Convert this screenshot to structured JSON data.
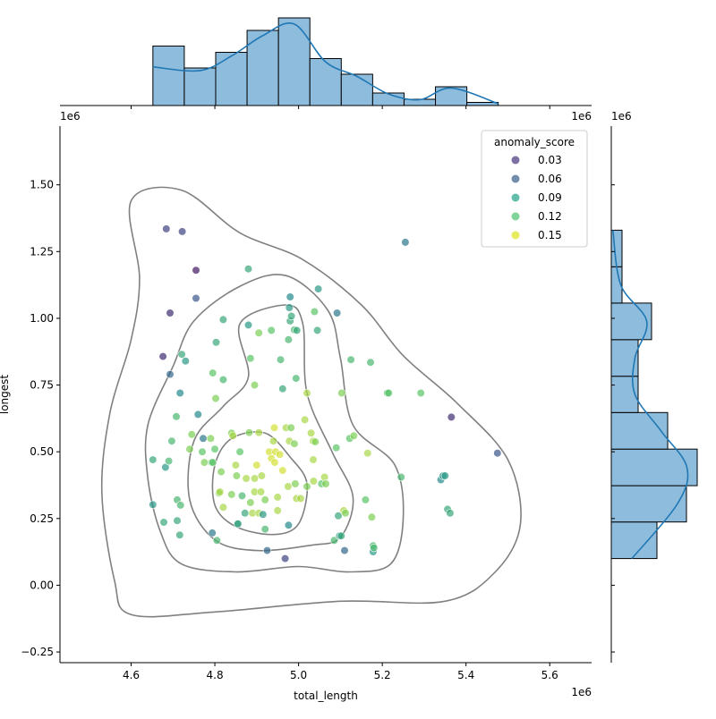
{
  "chart_data": {
    "type": "scatter",
    "xlabel": "total_length",
    "ylabel": "longest",
    "x_offset_label": "1e6",
    "y_offset_label": "1e6",
    "top_marginal_offset_label_left": "1e6",
    "top_marginal_offset_label_right": "1e6",
    "right_marginal_offset_label": "1e6",
    "xlim": [
      4.43,
      5.7
    ],
    "ylim": [
      -0.29,
      1.72
    ],
    "x_ticks": [
      4.6,
      4.8,
      5.0,
      5.2,
      5.4,
      5.6
    ],
    "x_tick_labels": [
      "4.6",
      "4.8",
      "5.0",
      "5.2",
      "5.4",
      "5.6"
    ],
    "y_ticks": [
      -0.25,
      0.0,
      0.25,
      0.5,
      0.75,
      1.0,
      1.25,
      1.5
    ],
    "y_tick_labels": [
      "−0.25",
      "0.00",
      "0.25",
      "0.50",
      "0.75",
      "1.00",
      "1.25",
      "1.50"
    ],
    "grid": false,
    "legend": {
      "title": "anomaly_score",
      "placement": "top-right",
      "entries": [
        {
          "label": "0.03",
          "color": "#46337e"
        },
        {
          "label": "0.06",
          "color": "#365c8d"
        },
        {
          "label": "0.09",
          "color": "#1fa187"
        },
        {
          "label": "0.12",
          "color": "#4ac16d"
        },
        {
          "label": "0.15",
          "color": "#dde318"
        }
      ]
    },
    "colors": {
      "histogram_fill": "#8ebcdc",
      "kde_line": "#1f77b4",
      "contour": "#808080",
      "axis": "#000000"
    },
    "colormap_stops": [
      "#440154",
      "#3b528b",
      "#21918c",
      "#5ec962",
      "#fde725"
    ],
    "score_range": [
      0.02,
      0.17
    ],
    "points": [
      [
        4.684,
        1.335,
        0.05
      ],
      [
        4.722,
        1.325,
        0.05
      ],
      [
        4.755,
        1.18,
        0.03
      ],
      [
        4.693,
        1.02,
        0.04
      ],
      [
        4.755,
        1.075,
        0.06
      ],
      [
        4.676,
        0.857,
        0.04
      ],
      [
        4.693,
        0.79,
        0.07
      ],
      [
        4.717,
        0.72,
        0.09
      ],
      [
        4.76,
        0.64,
        0.09
      ],
      [
        4.772,
        0.55,
        0.08
      ],
      [
        5.475,
        0.495,
        0.06
      ],
      [
        5.365,
        0.63,
        0.04
      ],
      [
        5.255,
        1.285,
        0.08
      ],
      [
        4.968,
        0.1,
        0.05
      ],
      [
        4.925,
        0.13,
        0.07
      ],
      [
        5.11,
        0.13,
        0.07
      ],
      [
        5.178,
        0.125,
        0.1
      ],
      [
        4.976,
        0.225,
        0.09
      ],
      [
        4.855,
        0.23,
        0.09
      ],
      [
        4.794,
        0.196,
        0.08
      ],
      [
        4.678,
        0.236,
        0.11
      ],
      [
        4.652,
        0.302,
        0.1
      ],
      [
        4.652,
        0.47,
        0.11
      ],
      [
        4.682,
        0.442,
        0.1
      ],
      [
        4.69,
        0.465,
        0.12
      ],
      [
        4.697,
        0.54,
        0.12
      ],
      [
        4.708,
        0.632,
        0.12
      ],
      [
        4.721,
        0.865,
        0.11
      ],
      [
        4.73,
        0.84,
        0.1
      ],
      [
        4.88,
        1.185,
        0.11
      ],
      [
        4.82,
        0.995,
        0.11
      ],
      [
        4.88,
        0.975,
        0.1
      ],
      [
        4.803,
        0.91,
        0.11
      ],
      [
        4.82,
        0.77,
        0.12
      ],
      [
        4.795,
        0.795,
        0.13
      ],
      [
        4.802,
        0.7,
        0.14
      ],
      [
        4.885,
        0.85,
        0.13
      ],
      [
        4.895,
        0.75,
        0.14
      ],
      [
        4.905,
        0.945,
        0.14
      ],
      [
        4.935,
        0.955,
        0.13
      ],
      [
        4.957,
        0.845,
        0.12
      ],
      [
        4.962,
        0.736,
        0.11
      ],
      [
        4.976,
        0.92,
        0.12
      ],
      [
        4.98,
        0.99,
        0.11
      ],
      [
        4.978,
        1.04,
        0.1
      ],
      [
        4.98,
        1.08,
        0.09
      ],
      [
        4.983,
        1.008,
        0.11
      ],
      [
        4.99,
        0.957,
        0.12
      ],
      [
        4.996,
        0.955,
        0.11
      ],
      [
        4.994,
        0.775,
        0.12
      ],
      [
        5.02,
        0.72,
        0.15
      ],
      [
        5.038,
        1.025,
        0.13
      ],
      [
        5.045,
        0.955,
        0.11
      ],
      [
        5.047,
        1.11,
        0.1
      ],
      [
        5.092,
        1.02,
        0.08
      ],
      [
        5.103,
        0.72,
        0.14
      ],
      [
        5.125,
        0.845,
        0.12
      ],
      [
        5.172,
        0.835,
        0.12
      ],
      [
        5.212,
        0.72,
        0.12
      ],
      [
        5.215,
        0.72,
        0.13
      ],
      [
        5.292,
        0.72,
        0.13
      ],
      [
        4.71,
        0.242,
        0.11
      ],
      [
        4.716,
        0.188,
        0.11
      ],
      [
        4.71,
        0.32,
        0.12
      ],
      [
        4.718,
        0.3,
        0.12
      ],
      [
        4.74,
        0.51,
        0.14
      ],
      [
        4.745,
        0.565,
        0.14
      ],
      [
        4.77,
        0.5,
        0.13
      ],
      [
        4.775,
        0.46,
        0.14
      ],
      [
        4.79,
        0.55,
        0.14
      ],
      [
        4.792,
        0.46,
        0.13
      ],
      [
        4.795,
        0.46,
        0.13
      ],
      [
        4.8,
        0.51,
        0.13
      ],
      [
        4.805,
        0.168,
        0.12
      ],
      [
        4.81,
        0.345,
        0.14
      ],
      [
        4.812,
        0.35,
        0.15
      ],
      [
        4.82,
        0.292,
        0.15
      ],
      [
        4.815,
        0.425,
        0.14
      ],
      [
        4.84,
        0.34,
        0.14
      ],
      [
        4.84,
        0.57,
        0.14
      ],
      [
        4.843,
        0.56,
        0.15
      ],
      [
        4.852,
        0.41,
        0.14
      ],
      [
        4.85,
        0.45,
        0.15
      ],
      [
        4.855,
        0.23,
        0.11
      ],
      [
        4.86,
        0.5,
        0.13
      ],
      [
        4.865,
        0.335,
        0.12
      ],
      [
        4.872,
        0.27,
        0.11
      ],
      [
        4.875,
        0.4,
        0.15
      ],
      [
        4.882,
        0.572,
        0.14
      ],
      [
        4.885,
        0.31,
        0.14
      ],
      [
        4.89,
        0.27,
        0.15
      ],
      [
        4.895,
        0.4,
        0.15
      ],
      [
        4.895,
        0.35,
        0.15
      ],
      [
        4.9,
        0.45,
        0.16
      ],
      [
        4.905,
        0.572,
        0.15
      ],
      [
        4.905,
        0.27,
        0.15
      ],
      [
        4.912,
        0.41,
        0.15
      ],
      [
        4.91,
        0.35,
        0.15
      ],
      [
        4.915,
        0.265,
        0.1
      ],
      [
        4.92,
        0.32,
        0.14
      ],
      [
        4.92,
        0.21,
        0.12
      ],
      [
        4.93,
        0.5,
        0.16
      ],
      [
        4.935,
        0.475,
        0.16
      ],
      [
        4.94,
        0.54,
        0.15
      ],
      [
        4.942,
        0.59,
        0.16
      ],
      [
        4.943,
        0.46,
        0.16
      ],
      [
        4.945,
        0.5,
        0.16
      ],
      [
        4.95,
        0.33,
        0.15
      ],
      [
        4.95,
        0.28,
        0.15
      ],
      [
        4.955,
        0.49,
        0.16
      ],
      [
        4.962,
        0.43,
        0.16
      ],
      [
        4.97,
        0.59,
        0.15
      ],
      [
        4.975,
        0.37,
        0.15
      ],
      [
        4.978,
        0.54,
        0.15
      ],
      [
        4.982,
        0.59,
        0.14
      ],
      [
        4.99,
        0.53,
        0.14
      ],
      [
        4.992,
        0.38,
        0.14
      ],
      [
        4.995,
        0.325,
        0.15
      ],
      [
        5.005,
        0.325,
        0.15
      ],
      [
        5.015,
        0.62,
        0.15
      ],
      [
        5.02,
        0.37,
        0.14
      ],
      [
        5.03,
        0.57,
        0.15
      ],
      [
        5.035,
        0.54,
        0.15
      ],
      [
        5.035,
        0.47,
        0.15
      ],
      [
        5.036,
        0.39,
        0.15
      ],
      [
        5.04,
        0.537,
        0.14
      ],
      [
        5.055,
        0.38,
        0.13
      ],
      [
        5.062,
        0.405,
        0.15
      ],
      [
        5.065,
        0.38,
        0.14
      ],
      [
        5.085,
        0.168,
        0.12
      ],
      [
        5.09,
        0.515,
        0.13
      ],
      [
        5.095,
        0.26,
        0.11
      ],
      [
        5.098,
        0.185,
        0.1
      ],
      [
        5.102,
        0.185,
        0.11
      ],
      [
        5.108,
        0.28,
        0.15
      ],
      [
        5.112,
        0.27,
        0.14
      ],
      [
        5.122,
        0.55,
        0.13
      ],
      [
        5.132,
        0.56,
        0.14
      ],
      [
        5.16,
        0.32,
        0.13
      ],
      [
        5.165,
        0.495,
        0.15
      ],
      [
        5.175,
        0.255,
        0.14
      ],
      [
        5.178,
        0.148,
        0.12
      ],
      [
        5.18,
        0.14,
        0.12
      ],
      [
        5.245,
        0.405,
        0.12
      ],
      [
        5.34,
        0.395,
        0.09
      ],
      [
        5.345,
        0.41,
        0.1
      ],
      [
        5.35,
        0.41,
        0.1
      ],
      [
        5.356,
        0.285,
        0.11
      ],
      [
        5.362,
        0.27,
        0.11
      ]
    ],
    "x_histogram": {
      "bin_edges": [
        4.652,
        4.727,
        4.802,
        4.877,
        4.952,
        5.027,
        5.102,
        5.177,
        5.252,
        5.327,
        5.402,
        5.477
      ],
      "counts": [
        19,
        12,
        17,
        24,
        28,
        15,
        10,
        4,
        2,
        6,
        1
      ]
    },
    "y_histogram": {
      "bin_edges": [
        0.1,
        0.237,
        0.373,
        0.51,
        0.647,
        0.783,
        0.92,
        1.057,
        1.193,
        1.33
      ],
      "counts": [
        17,
        28,
        32,
        21,
        10,
        10,
        15,
        4,
        4
      ]
    },
    "contours": [
      [
        [
          4.56,
          0.02
        ],
        [
          4.6,
          -0.11
        ],
        [
          4.8,
          -0.1
        ],
        [
          5.1,
          -0.06
        ],
        [
          5.35,
          -0.06
        ],
        [
          5.47,
          0.05
        ],
        [
          5.53,
          0.23
        ],
        [
          5.5,
          0.47
        ],
        [
          5.38,
          0.68
        ],
        [
          5.25,
          0.86
        ],
        [
          5.15,
          1.05
        ],
        [
          5.01,
          1.22
        ],
        [
          4.86,
          1.32
        ],
        [
          4.72,
          1.48
        ],
        [
          4.6,
          1.44
        ],
        [
          4.62,
          1.15
        ],
        [
          4.6,
          0.92
        ],
        [
          4.55,
          0.65
        ],
        [
          4.53,
          0.35
        ],
        [
          4.56,
          0.02
        ]
      ],
      [
        [
          4.67,
          0.2
        ],
        [
          4.72,
          0.08
        ],
        [
          4.85,
          0.05
        ],
        [
          5.0,
          0.07
        ],
        [
          5.12,
          0.05
        ],
        [
          5.22,
          0.08
        ],
        [
          5.25,
          0.25
        ],
        [
          5.23,
          0.45
        ],
        [
          5.13,
          0.6
        ],
        [
          5.1,
          0.85
        ],
        [
          5.07,
          1.03
        ],
        [
          4.97,
          1.16
        ],
        [
          4.86,
          1.12
        ],
        [
          4.75,
          0.99
        ],
        [
          4.7,
          0.82
        ],
        [
          4.64,
          0.6
        ],
        [
          4.64,
          0.4
        ],
        [
          4.67,
          0.2
        ]
      ],
      [
        [
          4.74,
          0.32
        ],
        [
          4.8,
          0.17
        ],
        [
          4.9,
          0.13
        ],
        [
          5.03,
          0.15
        ],
        [
          5.1,
          0.18
        ],
        [
          5.13,
          0.33
        ],
        [
          5.08,
          0.5
        ],
        [
          5.02,
          0.72
        ],
        [
          5.01,
          0.98
        ],
        [
          4.97,
          1.05
        ],
        [
          4.86,
          0.98
        ],
        [
          4.88,
          0.78
        ],
        [
          4.82,
          0.67
        ],
        [
          4.75,
          0.54
        ],
        [
          4.74,
          0.32
        ]
      ],
      [
        [
          4.8,
          0.45
        ],
        [
          4.8,
          0.3
        ],
        [
          4.85,
          0.22
        ],
        [
          4.94,
          0.19
        ],
        [
          5.0,
          0.23
        ],
        [
          5.02,
          0.38
        ],
        [
          4.98,
          0.48
        ],
        [
          4.92,
          0.57
        ],
        [
          4.84,
          0.55
        ],
        [
          4.8,
          0.45
        ]
      ]
    ]
  }
}
